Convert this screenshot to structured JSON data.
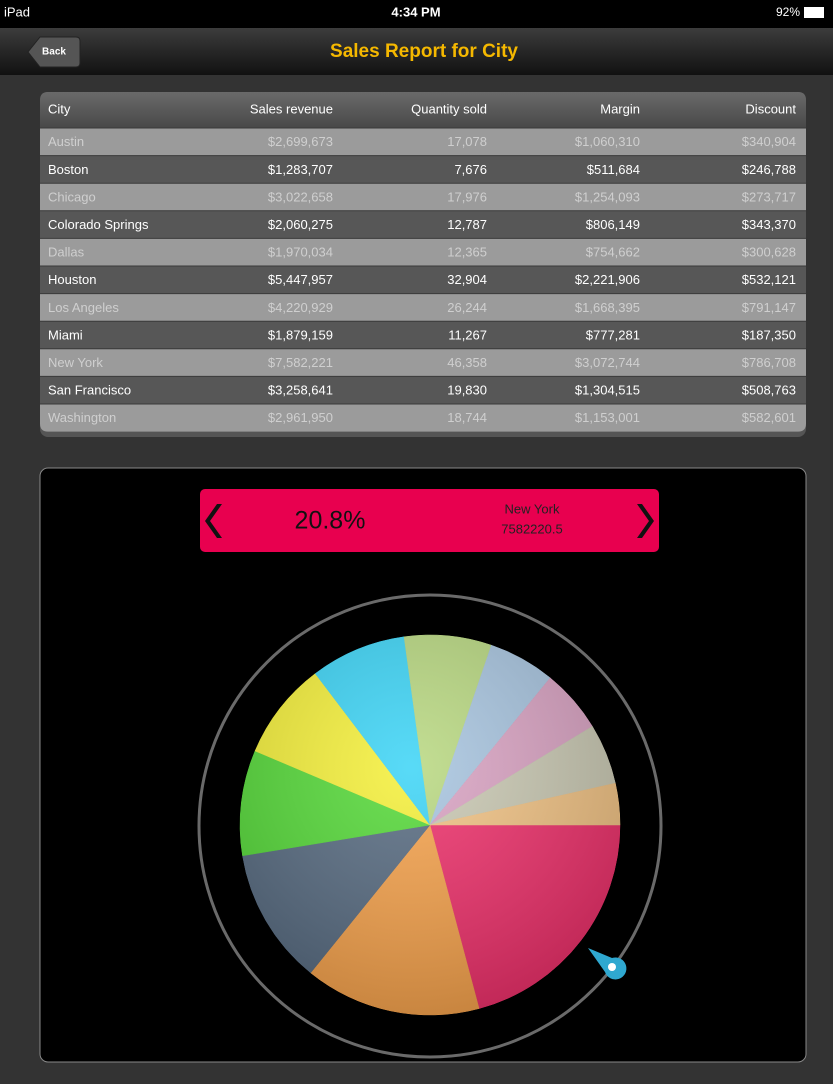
{
  "status_bar": {
    "device": "iPad",
    "time": "4:34 PM",
    "battery": "92%"
  },
  "nav_bar": {
    "back": "Back",
    "title": "Sales Report for City"
  },
  "table": {
    "columns": [
      "City",
      "Sales revenue",
      "Quantity sold",
      "Margin",
      "Discount"
    ],
    "rows": [
      [
        "Austin",
        "$2,699,673",
        "17,078",
        "$1,060,310",
        "$340,904"
      ],
      [
        "Boston",
        "$1,283,707",
        "7,676",
        "$511,684",
        "$246,788"
      ],
      [
        "Chicago",
        "$3,022,658",
        "17,976",
        "$1,254,093",
        "$273,717"
      ],
      [
        "Colorado Springs",
        "$2,060,275",
        "12,787",
        "$806,149",
        "$343,370"
      ],
      [
        "Dallas",
        "$1,970,034",
        "12,365",
        "$754,662",
        "$300,628"
      ],
      [
        "Houston",
        "$5,447,957",
        "32,904",
        "$2,221,906",
        "$532,121"
      ],
      [
        "Los Angeles",
        "$4,220,929",
        "26,244",
        "$1,668,395",
        "$791,147"
      ],
      [
        "Miami",
        "$1,879,159",
        "11,267",
        "$777,281",
        "$187,350"
      ],
      [
        "New York",
        "$7,582,221",
        "46,358",
        "$3,072,744",
        "$786,708"
      ],
      [
        "San Francisco",
        "$3,258,641",
        "19,830",
        "$1,304,515",
        "$508,763"
      ],
      [
        "Washington",
        "$2,961,950",
        "18,744",
        "$1,153,001",
        "$582,601"
      ]
    ]
  },
  "chart_data": {
    "type": "pie",
    "values": [
      20.84,
      14.97,
      11.6,
      8.96,
      8.31,
      8.14,
      7.42,
      5.66,
      5.41,
      5.16,
      3.53
    ],
    "colors": [
      "#ee2f6a",
      "#f6a24b",
      "#566a80",
      "#54d937",
      "#f5f038",
      "#3bd4f6",
      "#b8d880",
      "#a7c4df",
      "#d9a2c2",
      "#c9c8b2",
      "#f1c283"
    ],
    "percent_label": "20.8%",
    "selected_name": "New York",
    "selected_value": 7582220.5
  }
}
